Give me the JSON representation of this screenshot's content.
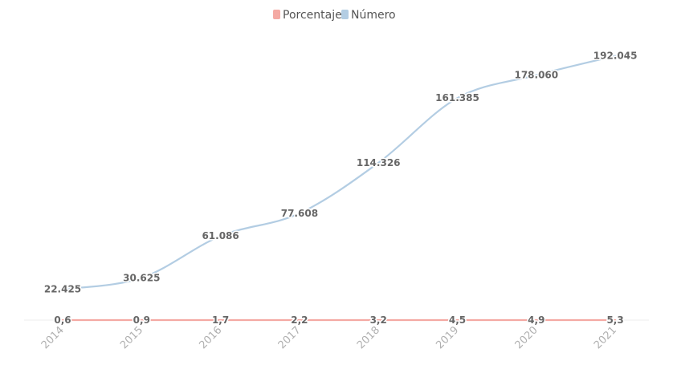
{
  "chart_data": {
    "type": "line",
    "categories": [
      "2014",
      "2015",
      "2016",
      "2017",
      "2018",
      "2019",
      "2020",
      "2021"
    ],
    "series": [
      {
        "name": "Porcentaje",
        "color": "#f4a9a3",
        "values": [
          0.6,
          0.9,
          1.7,
          2.2,
          3.2,
          4.5,
          4.9,
          5.3
        ],
        "labels": [
          "0,6",
          "0,9",
          "1,7",
          "2,2",
          "3,2",
          "4,5",
          "4,9",
          "5,3"
        ]
      },
      {
        "name": "Número",
        "color": "#b3cde3",
        "values": [
          22425,
          30625,
          61086,
          77608,
          114326,
          161385,
          178060,
          192045
        ],
        "labels": [
          "22.425",
          "30.625",
          "61.086",
          "77.608",
          "114.326",
          "161.385",
          "178.060",
          "192.045"
        ]
      }
    ],
    "legend_position": "top-center",
    "grid": false,
    "ylim": [
      0,
      200000
    ]
  }
}
